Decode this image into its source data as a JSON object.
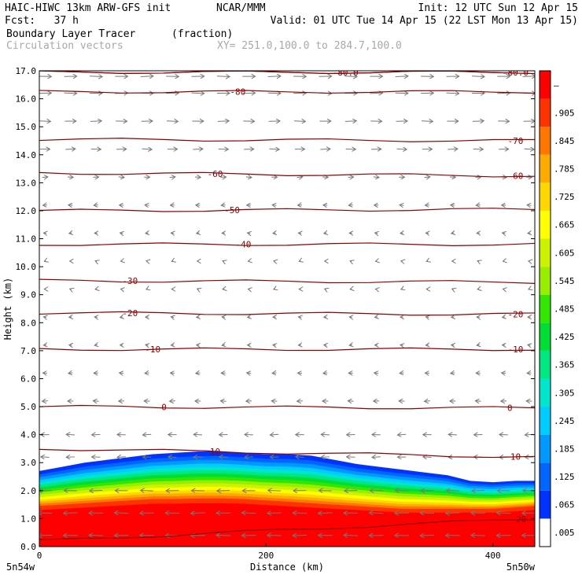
{
  "header": {
    "model": "HAIC-HIWC 13km ARW-GFS init",
    "org": "NCAR/MMM",
    "init": "Init: 12 UTC Sun 12 Apr 15",
    "fcst": "Fcst:   37 h",
    "valid": "Valid: 01 UTC Tue 14 Apr 15 (22 LST Mon 13 Apr 15)",
    "field1": "Boundary Layer Tracer",
    "field1_units": "(fraction)",
    "field2": "Circulation vectors",
    "xy": "XY= 251.0,100.0 to 284.7,100.0"
  },
  "chart_data": {
    "type": "heatmap",
    "xlabel": "Distance (km)",
    "ylabel": "Height (km)",
    "xlim": [
      0,
      437
    ],
    "ylim": [
      0,
      17
    ],
    "x_ticks": [
      {
        "value": 0,
        "label": "0"
      },
      {
        "value": 200,
        "label": "200"
      },
      {
        "value": 400,
        "label": "400"
      }
    ],
    "y_ticks": [
      0,
      1,
      2,
      3,
      4,
      5,
      6,
      7,
      8,
      9,
      10,
      11,
      12,
      13,
      14,
      15,
      16,
      17
    ],
    "y_tick_labels": [
      "0.0",
      "1.0",
      "2.0",
      "3.0",
      "4.0",
      "5.0",
      "6.0",
      "7.0",
      "8.0",
      "9.0",
      "10.0",
      "11.0",
      "12.0",
      "13.0",
      "14.0",
      "15.0",
      "16.0",
      "17.0"
    ],
    "endpoint_labels": {
      "left": "5n54w",
      "right": "5n50w"
    },
    "colorbar": {
      "labels": [
        ".005",
        ".065",
        ".125",
        ".185",
        ".245",
        ".305",
        ".365",
        ".425",
        ".485",
        ".545",
        ".605",
        ".665",
        ".725",
        ".785",
        ".845",
        ".905",
        "–"
      ],
      "colors": [
        "#ffffff",
        "#0033ff",
        "#0066ff",
        "#0099ff",
        "#00ccff",
        "#00e6cc",
        "#00e680",
        "#00dd33",
        "#33e600",
        "#99ee00",
        "#ccf200",
        "#ffff00",
        "#ffd700",
        "#ffaa00",
        "#ff7700",
        "#ff3300",
        "#ff0000"
      ]
    },
    "tracer_profile": {
      "x": [
        0,
        20,
        40,
        60,
        80,
        100,
        120,
        140,
        160,
        180,
        200,
        220,
        240,
        260,
        280,
        300,
        320,
        340,
        360,
        380,
        400,
        420,
        437
      ],
      "top_height": [
        2.7,
        2.85,
        3.0,
        3.1,
        3.2,
        3.3,
        3.35,
        3.4,
        3.4,
        3.35,
        3.3,
        3.3,
        3.25,
        3.1,
        2.95,
        2.85,
        2.75,
        2.65,
        2.55,
        2.35,
        2.3,
        2.35,
        2.35
      ],
      "high_fraction_height": [
        1.45,
        1.5,
        1.55,
        1.6,
        1.65,
        1.7,
        1.7,
        1.72,
        1.72,
        1.7,
        1.65,
        1.6,
        1.55,
        1.5,
        1.45,
        1.4,
        1.35,
        1.35,
        1.35,
        1.35,
        1.35,
        1.4,
        1.45
      ]
    },
    "contours": [
      {
        "level": 20,
        "label": "20",
        "y_left": 0.2,
        "y_right": 1.0,
        "label_x": [
          425
        ]
      },
      {
        "level": 10,
        "label": "10",
        "y_left": 3.5,
        "y_right": 3.2,
        "label_x": [
          155,
          420
        ]
      },
      {
        "level": 0,
        "label": "0",
        "y_left": 5.0,
        "y_right": 4.95,
        "label_x": [
          110,
          415
        ]
      },
      {
        "level": -10,
        "label": "-10",
        "y_left": 7.05,
        "y_right": 7.05,
        "label_x": [
          100,
          420
        ]
      },
      {
        "level": -20,
        "label": "-20",
        "y_left": 8.35,
        "y_right": 8.3,
        "label_x": [
          80,
          420
        ]
      },
      {
        "level": -30,
        "label": "-30",
        "y_left": 9.5,
        "y_right": 9.45,
        "label_x": [
          80
        ]
      },
      {
        "level": -40,
        "label": "-40",
        "y_left": 10.8,
        "y_right": 10.8,
        "label_x": [
          180
        ]
      },
      {
        "level": -50,
        "label": "-50",
        "y_left": 12.0,
        "y_right": 12.05,
        "label_x": [
          170
        ]
      },
      {
        "level": -60,
        "label": "-60",
        "y_left": 13.35,
        "y_right": 13.25,
        "label_x": [
          155,
          420
        ]
      },
      {
        "level": -70,
        "label": "-70",
        "y_left": 14.55,
        "y_right": 14.5,
        "label_x": [
          420
        ]
      },
      {
        "level": -80,
        "label": "-80",
        "y_left": 16.25,
        "y_right": 16.25,
        "label_x": [
          175
        ]
      },
      {
        "level": -80,
        "label": "-80.0",
        "y_left": 16.95,
        "y_right": 16.95,
        "label_x": [
          270
        ]
      },
      {
        "level": -80,
        "label": "-80.0",
        "y_left": 16.95,
        "y_right": 16.95,
        "label_x": [
          420
        ]
      }
    ],
    "vectors": {
      "heights": [
        0.4,
        1.2,
        2.0,
        3.2,
        4.0,
        5.2,
        6.2,
        7.2,
        8.2,
        9.2,
        10.2,
        11.2,
        12.2,
        13.2,
        14.2,
        15.2,
        16.2,
        16.8
      ],
      "u_relative": [
        -1.0,
        -1.0,
        -0.9,
        -0.6,
        -0.6,
        -0.4,
        -0.3,
        -0.2,
        -0.2,
        -0.1,
        -0.1,
        -0.2,
        -0.3,
        0.4,
        0.7,
        0.8,
        0.9,
        0.9
      ]
    }
  }
}
